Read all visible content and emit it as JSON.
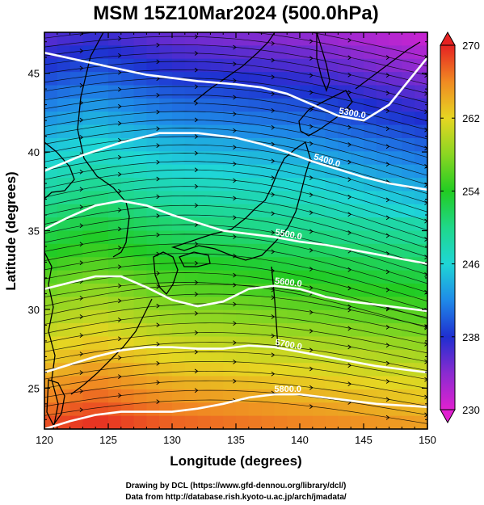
{
  "title": "MSM 15Z10Mar2024 (500.0hPa)",
  "xlabel": "Longitude (degrees)",
  "ylabel": "Latitude  (degrees)",
  "credits": [
    "Drawing by DCL (https://www.gfd-dennou.org/library/dcl/)",
    "Data from http://database.rish.kyoto-u.ac.jp/arch/jmadata/"
  ],
  "colors": {
    "contour": "#ffffff",
    "coast": "#000000",
    "streamline": "#000000"
  },
  "chart_data": {
    "type": "heatmap",
    "xlim": [
      120,
      150
    ],
    "ylim": [
      22.4,
      47.6
    ],
    "x_ticks": [
      120,
      125,
      130,
      135,
      140,
      145,
      150
    ],
    "y_ticks": [
      25,
      30,
      35,
      40,
      45
    ],
    "colorbar": {
      "min": 230,
      "max": 270,
      "ticks": [
        230,
        238,
        246,
        254,
        262,
        270
      ],
      "stops": [
        {
          "v": 230,
          "color": "#e021d0"
        },
        {
          "v": 234,
          "color": "#8a2bd0"
        },
        {
          "v": 238,
          "color": "#1f2fd0"
        },
        {
          "v": 242,
          "color": "#1f8ae8"
        },
        {
          "v": 246,
          "color": "#1fd6d6"
        },
        {
          "v": 250,
          "color": "#1fd88a"
        },
        {
          "v": 254,
          "color": "#22cc22"
        },
        {
          "v": 258,
          "color": "#8ad622"
        },
        {
          "v": 262,
          "color": "#e6d622"
        },
        {
          "v": 266,
          "color": "#f08a22"
        },
        {
          "v": 270,
          "color": "#e62222"
        }
      ]
    },
    "contours": [
      {
        "label": "5300.0",
        "points": [
          [
            120,
            46.3
          ],
          [
            124,
            45.6
          ],
          [
            128,
            44.9
          ],
          [
            132,
            44.5
          ],
          [
            135,
            44.3
          ],
          [
            137,
            44.1
          ],
          [
            139,
            43.7
          ],
          [
            141,
            43.0
          ],
          [
            143,
            42.3
          ],
          [
            145,
            42.0
          ],
          [
            147,
            43.0
          ],
          [
            148.5,
            44.5
          ],
          [
            150,
            46.0
          ]
        ]
      },
      {
        "label": "5400.0",
        "points": [
          [
            120,
            38.8
          ],
          [
            123,
            39.8
          ],
          [
            126,
            40.6
          ],
          [
            129,
            41.2
          ],
          [
            132,
            41.2
          ],
          [
            135,
            40.9
          ],
          [
            137,
            40.5
          ],
          [
            139,
            40.0
          ],
          [
            141,
            39.4
          ],
          [
            143,
            38.9
          ],
          [
            145,
            38.4
          ],
          [
            147,
            38.0
          ],
          [
            150,
            37.6
          ]
        ]
      },
      {
        "label": "5500.0",
        "points": [
          [
            120,
            35.1
          ],
          [
            122,
            35.9
          ],
          [
            124,
            36.6
          ],
          [
            126,
            36.9
          ],
          [
            128,
            36.6
          ],
          [
            130,
            36.0
          ],
          [
            132,
            35.5
          ],
          [
            134,
            35.0
          ],
          [
            136,
            34.8
          ],
          [
            138,
            34.6
          ],
          [
            140,
            34.3
          ],
          [
            142,
            34.1
          ],
          [
            144,
            33.8
          ],
          [
            146,
            33.5
          ],
          [
            148,
            33.2
          ],
          [
            150,
            32.9
          ]
        ]
      },
      {
        "label": "5600.0",
        "points": [
          [
            120,
            31.3
          ],
          [
            122,
            31.7
          ],
          [
            124,
            32.1
          ],
          [
            126,
            32.1
          ],
          [
            128,
            31.4
          ],
          [
            130,
            30.6
          ],
          [
            132,
            30.2
          ],
          [
            134,
            30.5
          ],
          [
            136,
            31.3
          ],
          [
            138,
            31.5
          ],
          [
            140,
            31.3
          ],
          [
            142,
            30.8
          ],
          [
            144,
            30.5
          ],
          [
            146,
            30.3
          ],
          [
            148,
            30.1
          ],
          [
            150,
            29.9
          ]
        ]
      },
      {
        "label": "5700.0",
        "points": [
          [
            120,
            26.0
          ],
          [
            122,
            26.5
          ],
          [
            124,
            27.0
          ],
          [
            126,
            27.4
          ],
          [
            128,
            27.6
          ],
          [
            130,
            27.6
          ],
          [
            132,
            27.5
          ],
          [
            134,
            27.5
          ],
          [
            136,
            27.7
          ],
          [
            138,
            27.6
          ],
          [
            140,
            27.3
          ],
          [
            142,
            27.0
          ],
          [
            144,
            26.7
          ],
          [
            146,
            26.4
          ],
          [
            148,
            26.2
          ],
          [
            150,
            26.0
          ]
        ]
      },
      {
        "label": "5800.0",
        "points": [
          [
            120,
            22.4
          ],
          [
            122,
            22.9
          ],
          [
            124,
            23.3
          ],
          [
            126,
            23.5
          ],
          [
            128,
            23.5
          ],
          [
            130,
            23.5
          ],
          [
            132,
            23.7
          ],
          [
            134,
            24.0
          ],
          [
            136,
            24.4
          ],
          [
            138,
            24.6
          ],
          [
            140,
            24.6
          ],
          [
            142,
            24.4
          ],
          [
            144,
            24.2
          ],
          [
            146,
            24.0
          ],
          [
            148,
            23.9
          ],
          [
            150,
            23.8
          ]
        ]
      }
    ]
  }
}
